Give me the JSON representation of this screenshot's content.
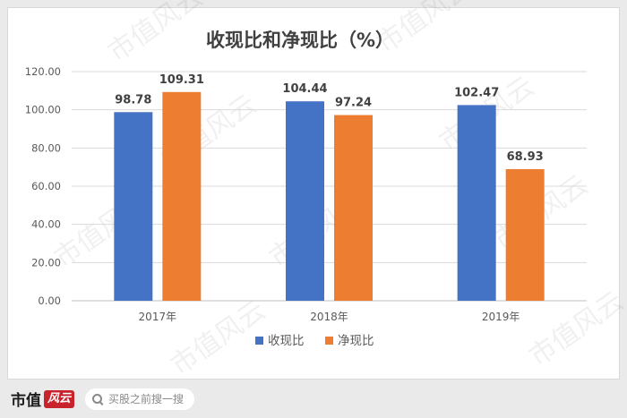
{
  "chart_data": {
    "type": "bar",
    "title": "收现比和净现比（%）",
    "categories": [
      "2017年",
      "2018年",
      "2019年"
    ],
    "series": [
      {
        "name": "收现比",
        "values": [
          98.78,
          104.44,
          102.47
        ],
        "color": "#4472c4"
      },
      {
        "name": "净现比",
        "values": [
          109.31,
          97.24,
          68.93
        ],
        "color": "#ed7d31"
      }
    ],
    "data_labels": [
      [
        "98.78",
        "104.44",
        "102.47"
      ],
      [
        "109.31",
        "97.24",
        "68.93"
      ]
    ],
    "yticks": [
      "0.00",
      "20.00",
      "40.00",
      "60.00",
      "80.00",
      "100.00",
      "120.00"
    ],
    "ylim": [
      0,
      120
    ],
    "grid": true,
    "legend_position": "bottom"
  },
  "watermark": "市值风云",
  "footer": {
    "logo_text": "市值",
    "logo_script": "风云",
    "search_placeholder": "买股之前搜一搜"
  },
  "colors": {
    "gridline": "#d9d9d9",
    "text": "#595959",
    "label": "#404040"
  }
}
